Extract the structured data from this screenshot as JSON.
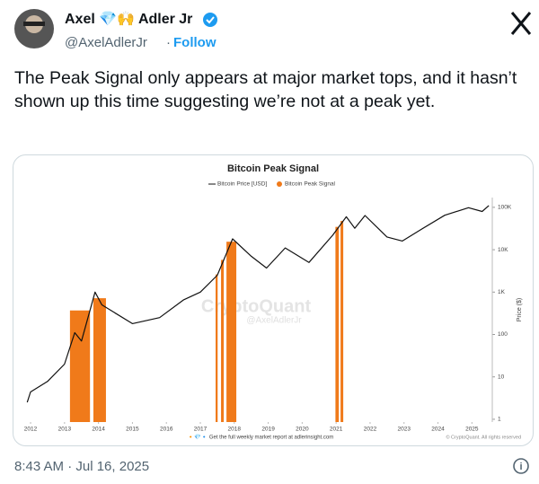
{
  "author": {
    "name": "Axel 💎🙌 Adler Jr",
    "handle": "@AxelAdlerJr",
    "follow": "Follow"
  },
  "text": "The Peak Signal only appears at major market tops, and it hasn’t shown up this time suggesting we’re not at a peak yet.",
  "timestamp": "8:43 AM · Jul 16, 2025",
  "chart_data": {
    "type": "line",
    "title": "Bitcoin Peak Signal",
    "y_label": "Price ($)",
    "log_scale": true,
    "watermark": "CryptoQuant",
    "watermark_handle": "@AxelAdlerJr",
    "footer": "🔸💎🔹 Get the full weekly market report at adlerinsight.com",
    "copyright": "© CryptoQuant. All rights reserved",
    "series": [
      {
        "name": "Bitcoin Price [USD]",
        "color": "#111111",
        "x": [
          2011.9,
          2012.0,
          2012.5,
          2013.0,
          2013.3,
          2013.5,
          2013.9,
          2014.1,
          2015.0,
          2015.8,
          2016.5,
          2017.0,
          2017.5,
          2017.95,
          2018.5,
          2018.95,
          2019.5,
          2020.2,
          2020.9,
          2021.3,
          2021.55,
          2021.85,
          2022.5,
          2022.95,
          2023.5,
          2024.2,
          2024.9,
          2025.3,
          2025.5
        ],
        "values": [
          2.5,
          4.4,
          7.8,
          20,
          110,
          70,
          1000,
          500,
          180,
          250,
          650,
          1000,
          2500,
          18000,
          7000,
          3700,
          11000,
          5000,
          22000,
          60000,
          32000,
          64000,
          20000,
          16000,
          30000,
          65000,
          98000,
          80000,
          110000
        ]
      }
    ],
    "signal": {
      "name": "Bitcoin Peak Signal",
      "color": "#f07a1a",
      "ranges": [
        [
          2013.16,
          2013.75
        ],
        [
          2013.85,
          2014.22
        ],
        [
          2017.45,
          2017.51
        ],
        [
          2017.61,
          2017.69
        ],
        [
          2017.77,
          2018.06
        ],
        [
          2020.98,
          2021.08
        ],
        [
          2021.13,
          2021.21
        ]
      ]
    },
    "xlim": [
      2011.84,
      2025.6
    ],
    "xticks": [
      2012,
      2013,
      2014,
      2015,
      2016,
      2017,
      2018,
      2019,
      2020,
      2021,
      2022,
      2023,
      2024,
      2025
    ],
    "ylim": [
      0.86,
      170000
    ],
    "yticks": [
      1,
      10,
      100,
      {
        "value": 1000,
        "label": "1K"
      },
      {
        "value": 10000,
        "label": "10K"
      },
      {
        "value": 100000,
        "label": "100K"
      }
    ]
  }
}
